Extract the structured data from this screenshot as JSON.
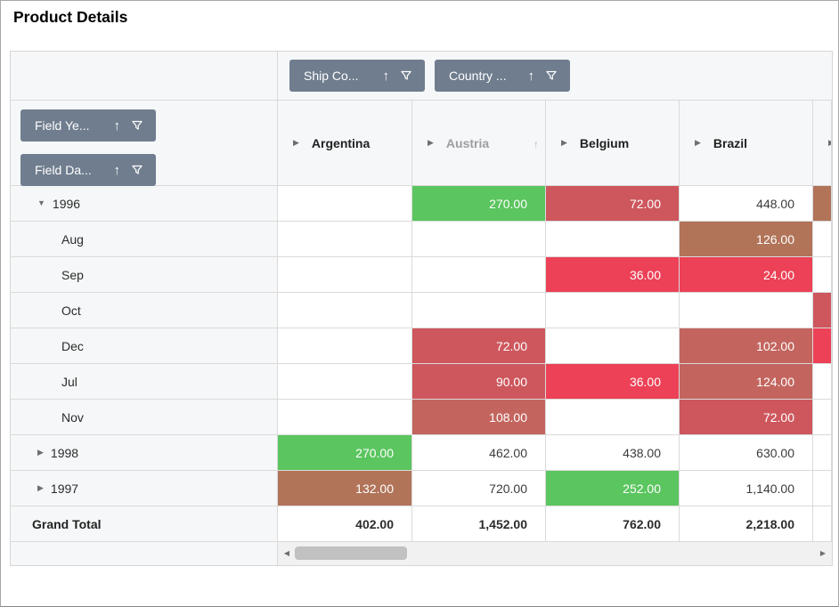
{
  "window": {
    "title": "Product Details"
  },
  "palette": {
    "green": "#5BC55F",
    "red": "#EC4156",
    "brick": "#CD575D",
    "redBrown": "#C3655E",
    "brown": "#B17459",
    "headerBg": "#F5F7F8",
    "fieldButtonBg": "#6F7D8E",
    "gridBorder": "#DADADA",
    "scrollTrack": "#F1F1F1",
    "scrollThumb": "#C1C1C1"
  },
  "icons": {
    "sort_ascending": "↑",
    "filter": "funnel",
    "expand": "▶",
    "collapse": "▼",
    "scroll_left": "◀",
    "scroll_right": "▶"
  },
  "fields": {
    "columns": [
      {
        "label": "Ship Co...",
        "icons": [
          "sort-ascending-icon",
          "filter-icon"
        ]
      },
      {
        "label": "Country ...",
        "icons": [
          "sort-ascending-icon",
          "filter-icon"
        ]
      }
    ],
    "rows": [
      {
        "label": "Field Ye...",
        "icons": [
          "sort-ascending-icon",
          "filter-icon"
        ]
      },
      {
        "label": "Field Da...",
        "icons": [
          "sort-ascending-icon",
          "filter-icon"
        ]
      }
    ]
  },
  "columns": [
    {
      "label": "Argentina",
      "expandable": true
    },
    {
      "label": "Austria",
      "expandable": true,
      "hovered": true,
      "sort_icon": "↑"
    },
    {
      "label": "Belgium",
      "expandable": true
    },
    {
      "label": "Brazil",
      "expandable": true
    },
    {
      "label": "",
      "expandable": true,
      "partial": true
    }
  ],
  "rows": [
    {
      "label": "1996",
      "expanded": true,
      "cells": [
        {
          "v": ""
        },
        {
          "v": "270.00",
          "bg": "green"
        },
        {
          "v": "72.00",
          "bg": "brick"
        },
        {
          "v": "448.00"
        },
        {
          "v": "",
          "bg": "brown"
        }
      ]
    },
    {
      "label": "Aug",
      "cells": [
        {
          "v": ""
        },
        {
          "v": ""
        },
        {
          "v": ""
        },
        {
          "v": "126.00",
          "bg": "brown"
        },
        {
          "v": ""
        }
      ]
    },
    {
      "label": "Sep",
      "cells": [
        {
          "v": ""
        },
        {
          "v": ""
        },
        {
          "v": "36.00",
          "bg": "red"
        },
        {
          "v": "24.00",
          "bg": "red"
        },
        {
          "v": ""
        }
      ]
    },
    {
      "label": "Oct",
      "cells": [
        {
          "v": ""
        },
        {
          "v": ""
        },
        {
          "v": ""
        },
        {
          "v": ""
        },
        {
          "v": "",
          "bg": "brick"
        }
      ]
    },
    {
      "label": "Dec",
      "cells": [
        {
          "v": ""
        },
        {
          "v": "72.00",
          "bg": "brick"
        },
        {
          "v": ""
        },
        {
          "v": "102.00",
          "bg": "redBrown"
        },
        {
          "v": "",
          "bg": "red"
        }
      ]
    },
    {
      "label": "Jul",
      "cells": [
        {
          "v": ""
        },
        {
          "v": "90.00",
          "bg": "brick"
        },
        {
          "v": "36.00",
          "bg": "red"
        },
        {
          "v": "124.00",
          "bg": "redBrown"
        },
        {
          "v": ""
        }
      ]
    },
    {
      "label": "Nov",
      "cells": [
        {
          "v": ""
        },
        {
          "v": "108.00",
          "bg": "redBrown"
        },
        {
          "v": ""
        },
        {
          "v": "72.00",
          "bg": "brick"
        },
        {
          "v": ""
        }
      ]
    },
    {
      "label": "1998",
      "expanded": false,
      "cells": [
        {
          "v": "270.00",
          "bg": "green"
        },
        {
          "v": "462.00"
        },
        {
          "v": "438.00"
        },
        {
          "v": "630.00"
        },
        {
          "v": ""
        }
      ]
    },
    {
      "label": "1997",
      "expanded": false,
      "cells": [
        {
          "v": "132.00",
          "bg": "brown"
        },
        {
          "v": "720.00"
        },
        {
          "v": "252.00",
          "bg": "green"
        },
        {
          "v": "1,140.00"
        },
        {
          "v": ""
        }
      ]
    },
    {
      "label": "Grand Total",
      "total": true,
      "cells": [
        {
          "v": "402.00"
        },
        {
          "v": "1,452.00"
        },
        {
          "v": "762.00"
        },
        {
          "v": "2,218.00"
        },
        {
          "v": ""
        }
      ]
    }
  ]
}
